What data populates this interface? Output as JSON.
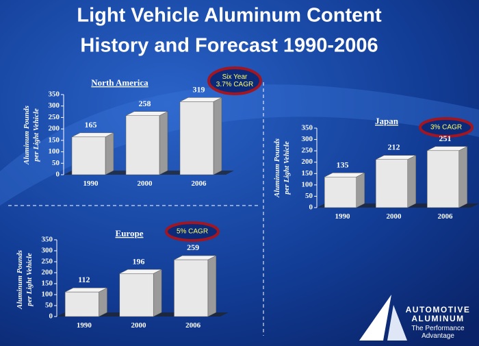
{
  "title": [
    "Light Vehicle Aluminum Content",
    "History and Forecast 1990-2006"
  ],
  "logo": [
    "AUTOMOTIVE",
    "ALUMINUM",
    "The Performance",
    "Advantage"
  ],
  "chart_data": [
    {
      "type": "bar",
      "title": "North America",
      "ylabel": [
        "Aluminum Pounds",
        "per Light Vehicle"
      ],
      "annotation": [
        "Six Year",
        "3.7% CAGR"
      ],
      "categories": [
        "1990",
        "2000",
        "2006"
      ],
      "values": [
        165,
        258,
        319
      ],
      "color": "#e8e8e8",
      "ylim": [
        0,
        350
      ],
      "yticks": [
        0,
        50,
        100,
        150,
        200,
        250,
        300,
        350
      ]
    },
    {
      "type": "bar",
      "title": "Japan",
      "ylabel": [
        "Aluminum Pounds",
        "per Light Vehicle"
      ],
      "annotation": [
        "3% CAGR"
      ],
      "categories": [
        "1990",
        "2000",
        "2006"
      ],
      "values": [
        135,
        212,
        251
      ],
      "color": "#e8e8e8",
      "ylim": [
        0,
        350
      ],
      "yticks": [
        0,
        50,
        100,
        150,
        200,
        250,
        300,
        350
      ]
    },
    {
      "type": "bar",
      "title": "Europe",
      "ylabel": [
        "Aluminum Pounds",
        "per Light Vehicle"
      ],
      "annotation": [
        "5% CAGR"
      ],
      "categories": [
        "1990",
        "2000",
        "2006"
      ],
      "values": [
        112,
        196,
        259
      ],
      "color": "#e8e8e8",
      "ylim": [
        0,
        350
      ],
      "yticks": [
        0,
        50,
        100,
        150,
        200,
        250,
        300,
        350
      ]
    }
  ]
}
